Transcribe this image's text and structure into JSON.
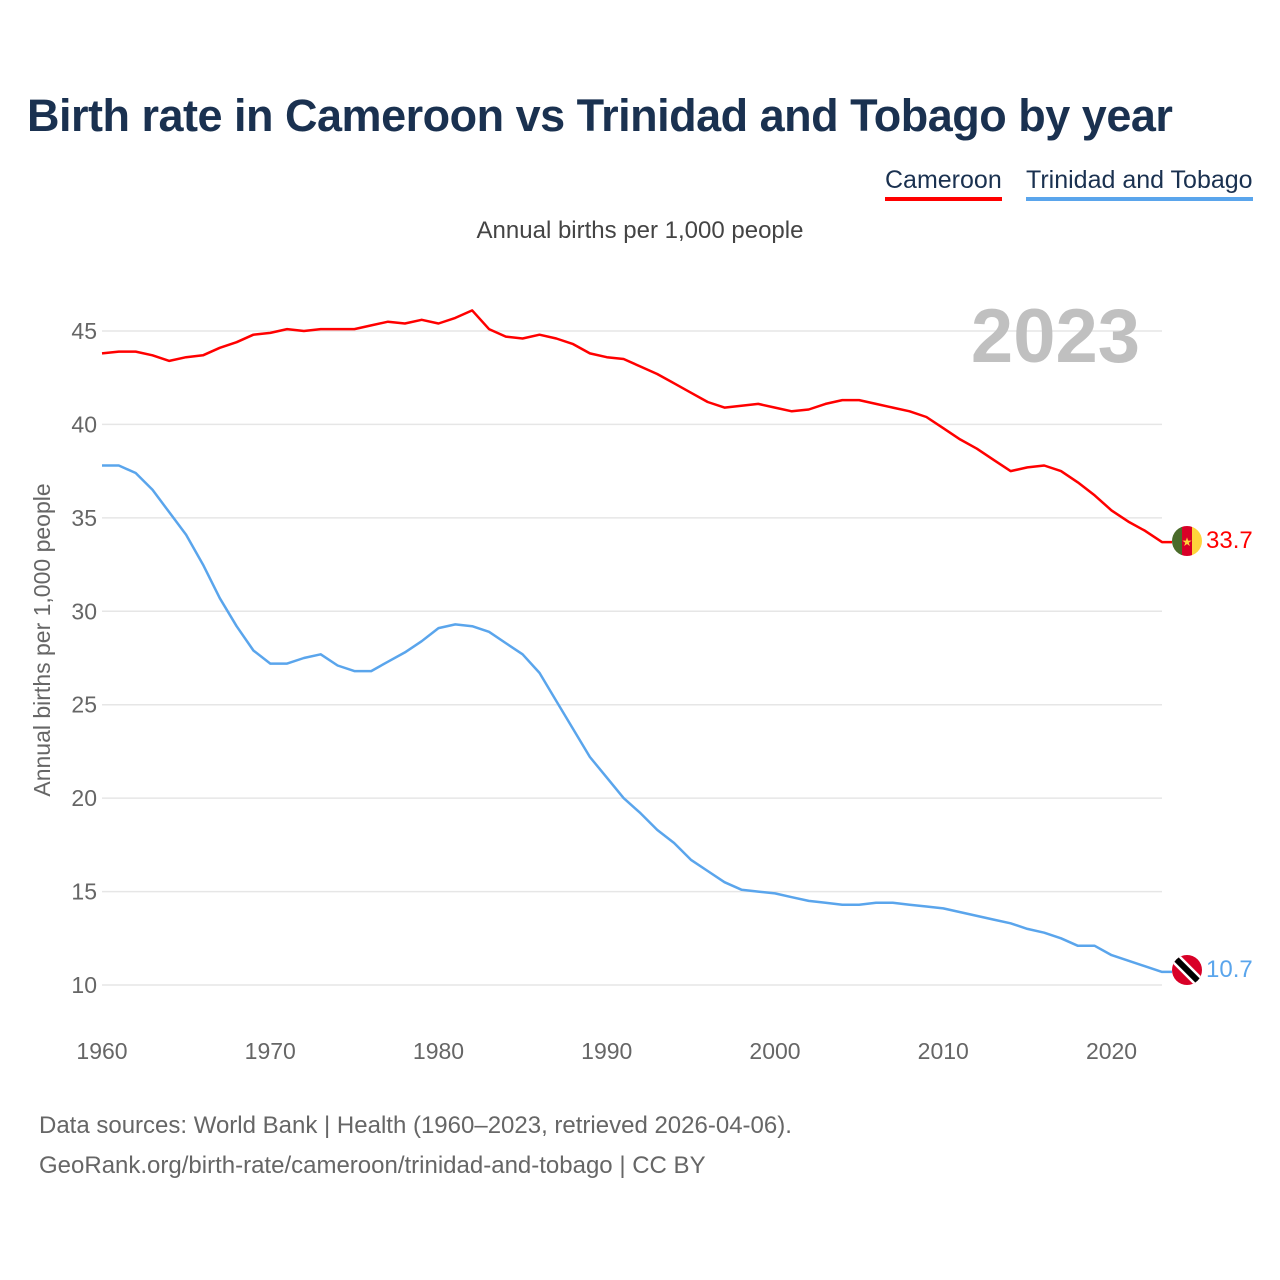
{
  "chart_data": {
    "type": "line",
    "title": "Birth rate in Cameroon vs Trinidad and Tobago by year",
    "subtitle": "Annual births per 1,000 people",
    "ylabel": "Annual births per 1,000 people",
    "xlabel": "",
    "year_watermark": "2023",
    "ylim": [
      10,
      45
    ],
    "xlim": [
      1960,
      2023
    ],
    "yticks": [
      "10",
      "15",
      "20",
      "25",
      "30",
      "35",
      "40",
      "45"
    ],
    "xticks": [
      "1960",
      "1970",
      "1980",
      "1990",
      "2000",
      "2010",
      "2020"
    ],
    "grid": true,
    "legend_position": "top-right",
    "x": [
      1960,
      1961,
      1962,
      1963,
      1964,
      1965,
      1966,
      1967,
      1968,
      1969,
      1970,
      1971,
      1972,
      1973,
      1974,
      1975,
      1976,
      1977,
      1978,
      1979,
      1980,
      1981,
      1982,
      1983,
      1984,
      1985,
      1986,
      1987,
      1988,
      1989,
      1990,
      1991,
      1992,
      1993,
      1994,
      1995,
      1996,
      1997,
      1998,
      1999,
      2000,
      2001,
      2002,
      2003,
      2004,
      2005,
      2006,
      2007,
      2008,
      2009,
      2010,
      2011,
      2012,
      2013,
      2014,
      2015,
      2016,
      2017,
      2018,
      2019,
      2020,
      2021,
      2022,
      2023
    ],
    "series": [
      {
        "name": "Cameroon",
        "color": "#ff0000",
        "end_label": "33.7",
        "values": [
          43.8,
          43.9,
          43.9,
          43.7,
          43.4,
          43.6,
          43.7,
          44.1,
          44.4,
          44.8,
          44.9,
          45.1,
          45.0,
          45.1,
          45.1,
          45.1,
          45.3,
          45.5,
          45.4,
          45.6,
          45.4,
          45.7,
          46.1,
          45.1,
          44.7,
          44.6,
          44.8,
          44.6,
          44.3,
          43.8,
          43.6,
          43.5,
          43.1,
          42.7,
          42.2,
          41.7,
          41.2,
          40.9,
          41.0,
          41.1,
          40.9,
          40.7,
          40.8,
          41.1,
          41.3,
          41.3,
          41.1,
          40.9,
          40.7,
          40.4,
          39.8,
          39.2,
          38.7,
          38.1,
          37.5,
          37.7,
          37.8,
          37.5,
          36.9,
          36.2,
          35.4,
          34.8,
          34.3,
          33.7
        ]
      },
      {
        "name": "Trinidad and Tobago",
        "color": "#5aa5ec",
        "end_label": "10.7",
        "values": [
          37.8,
          37.8,
          37.4,
          36.5,
          35.3,
          34.1,
          32.5,
          30.7,
          29.2,
          27.9,
          27.2,
          27.2,
          27.5,
          27.7,
          27.1,
          26.8,
          26.8,
          27.3,
          27.8,
          28.4,
          29.1,
          29.3,
          29.2,
          28.9,
          28.3,
          27.7,
          26.7,
          25.2,
          23.7,
          22.2,
          21.1,
          20.0,
          19.2,
          18.3,
          17.6,
          16.7,
          16.1,
          15.5,
          15.1,
          15.0,
          14.9,
          14.7,
          14.5,
          14.4,
          14.3,
          14.3,
          14.4,
          14.4,
          14.3,
          14.2,
          14.1,
          13.9,
          13.7,
          13.5,
          13.3,
          13.0,
          12.8,
          12.5,
          12.1,
          12.1,
          11.6,
          11.3,
          11.0,
          10.7
        ]
      }
    ]
  },
  "footer": {
    "line1": "Data sources: World Bank | Health (1960–2023, retrieved 2026-04-06).",
    "line2": "GeoRank.org/birth-rate/cameroon/trinidad-and-tobago | CC BY"
  }
}
